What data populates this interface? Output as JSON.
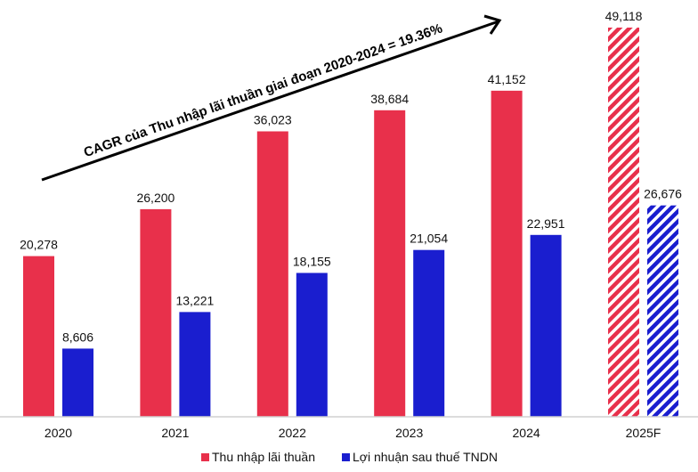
{
  "chart_data": {
    "type": "bar",
    "title": "",
    "xlabel": "",
    "ylabel": "",
    "ylim": [
      0,
      52600
    ],
    "grid": false,
    "legend_placement": "bottom",
    "categories": [
      "2020",
      "2021",
      "2022",
      "2023",
      "2024",
      "2025F"
    ],
    "series": [
      {
        "name": "Thu nhập lãi thuần",
        "color": "#E8304B",
        "values": [
          20278,
          26200,
          36023,
          38684,
          41152,
          49118
        ],
        "labels": [
          "20,278",
          "26,200",
          "36,023",
          "38,684",
          "41,152",
          "49,118"
        ]
      },
      {
        "name": "Lợi nhuận sau thuế TNDN",
        "color": "#1A1ECF",
        "values": [
          8606,
          13221,
          18155,
          21054,
          22951,
          26676
        ],
        "labels": [
          "8,606",
          "13,221",
          "18,155",
          "21,054",
          "22,951",
          "26,676"
        ]
      }
    ],
    "forecast_categories": [
      "2025F"
    ],
    "forecast_pattern": "diagonal-hatch",
    "annotation": "CAGR của Thu nhập lãi thuần giai đoạn 2020-2024 = 19.36%"
  }
}
